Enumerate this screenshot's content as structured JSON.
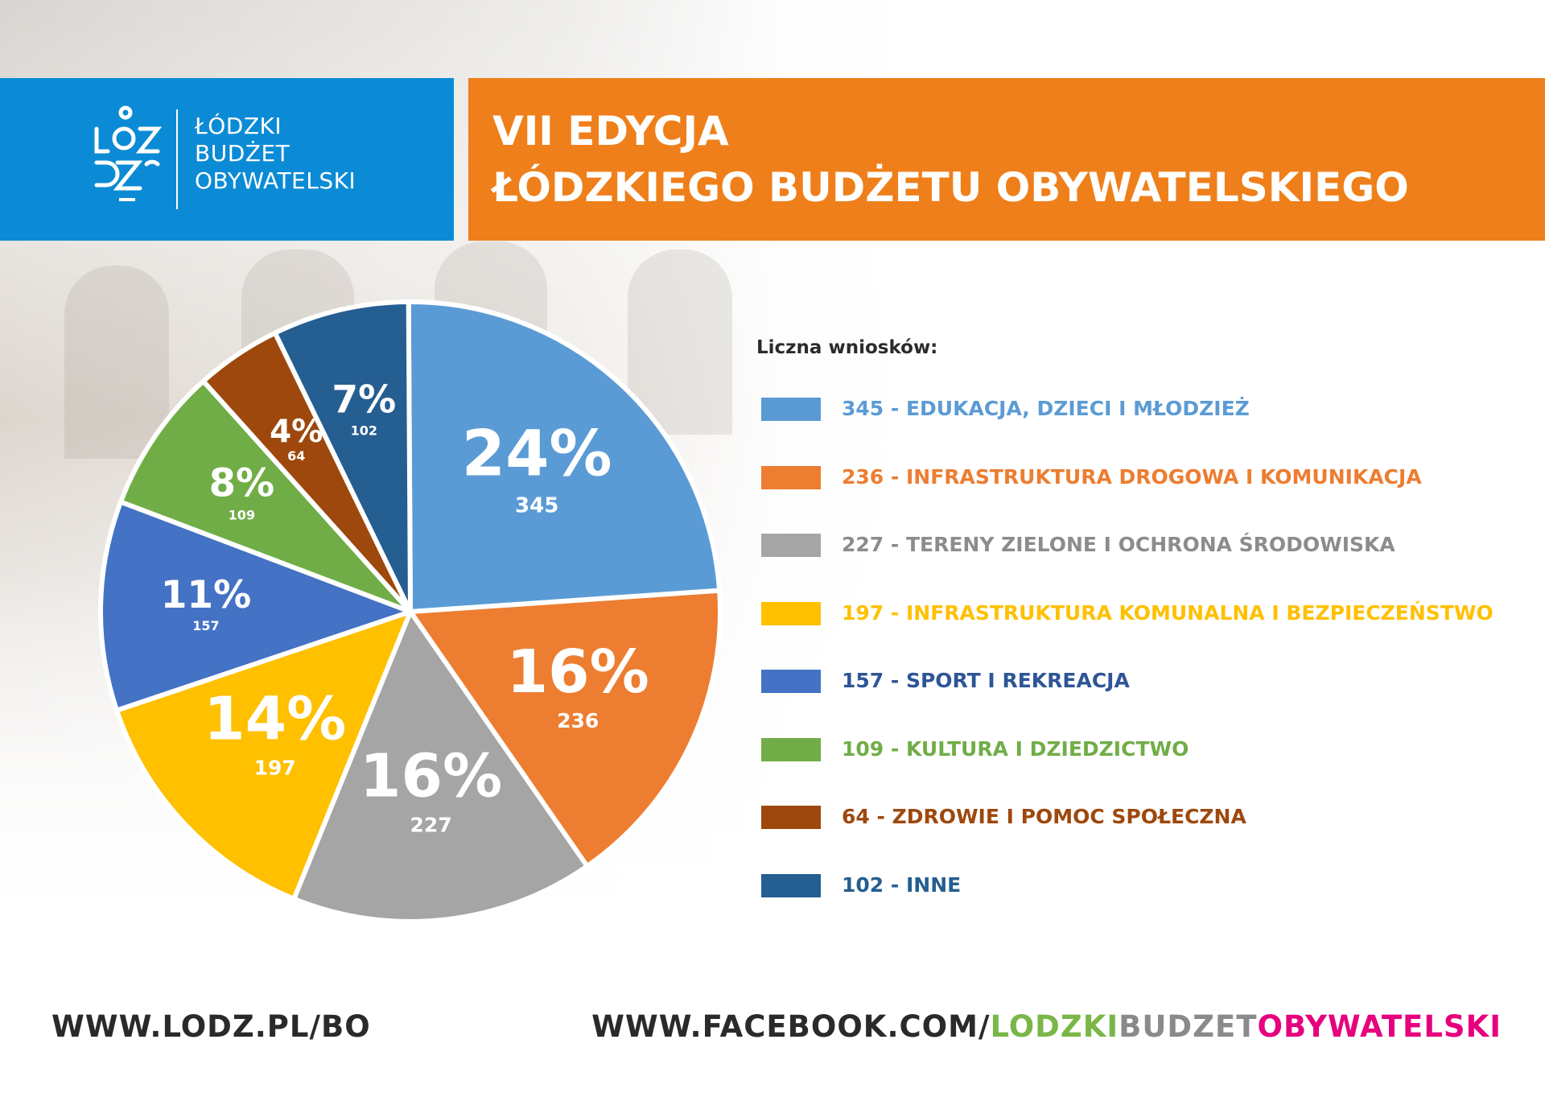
{
  "logo": {
    "line1": "ŁÓDZKI",
    "line2": "BUDŻET",
    "line3": "OBYWATELSKI"
  },
  "title": {
    "line1": "VII EDYCJA",
    "line2": "ŁÓDZKIEGO BUDŻETU OBYWATELSKIEGO"
  },
  "colors": {
    "header_blue": "#0b8bd5",
    "header_orange": "#ef7f1a"
  },
  "chart_data": {
    "type": "pie",
    "legend_title": "Liczna wniosków:",
    "legend_placement": "right",
    "slices": [
      {
        "label": "EDUKACJA, DZIECI I MŁODZIEŻ",
        "value": 345,
        "percent_label": "24%",
        "color": "#5b9bd5",
        "legend_text_color": "#5b9bd5"
      },
      {
        "label": "INFRASTRUKTURA DROGOWA I KOMUNIKACJA",
        "value": 236,
        "percent_label": "16%",
        "color": "#ed7d31",
        "legend_text_color": "#ed7d31"
      },
      {
        "label": "TERENY ZIELONE I OCHRONA ŚRODOWISKA",
        "value": 227,
        "percent_label": "16%",
        "color": "#a5a5a5",
        "legend_text_color": "#8c8c8c"
      },
      {
        "label": "INFRASTRUKTURA KOMUNALNA I BEZPIECZEŃSTWO",
        "value": 197,
        "percent_label": "14%",
        "color": "#ffc000",
        "legend_text_color": "#ffc000"
      },
      {
        "label": "SPORT I REKREACJA",
        "value": 157,
        "percent_label": "11%",
        "color": "#4472c4",
        "legend_text_color": "#2e5597"
      },
      {
        "label": "KULTURA I DZIEDZICTWO",
        "value": 109,
        "percent_label": "8%",
        "color": "#70ad47",
        "legend_text_color": "#70ad47"
      },
      {
        "label": "ZDROWIE I POMOC SPOŁECZNA",
        "value": 64,
        "percent_label": "4%",
        "color": "#9e480e",
        "legend_text_color": "#9e480e"
      },
      {
        "label": "INNE",
        "value": 102,
        "percent_label": "7%",
        "color": "#255e91",
        "legend_text_color": "#255e91"
      }
    ]
  },
  "footer": {
    "left_url": "WWW.LODZ.PL/BO",
    "right_prefix": "WWW.FACEBOOK.COM/",
    "right_part1": "LODZKI",
    "right_part2": "BUDZET",
    "right_part3": "OBYWATELSKI",
    "right_part1_color": "#7ab648",
    "right_part2_color": "#8a8a8a",
    "right_part3_color": "#e6007e"
  }
}
